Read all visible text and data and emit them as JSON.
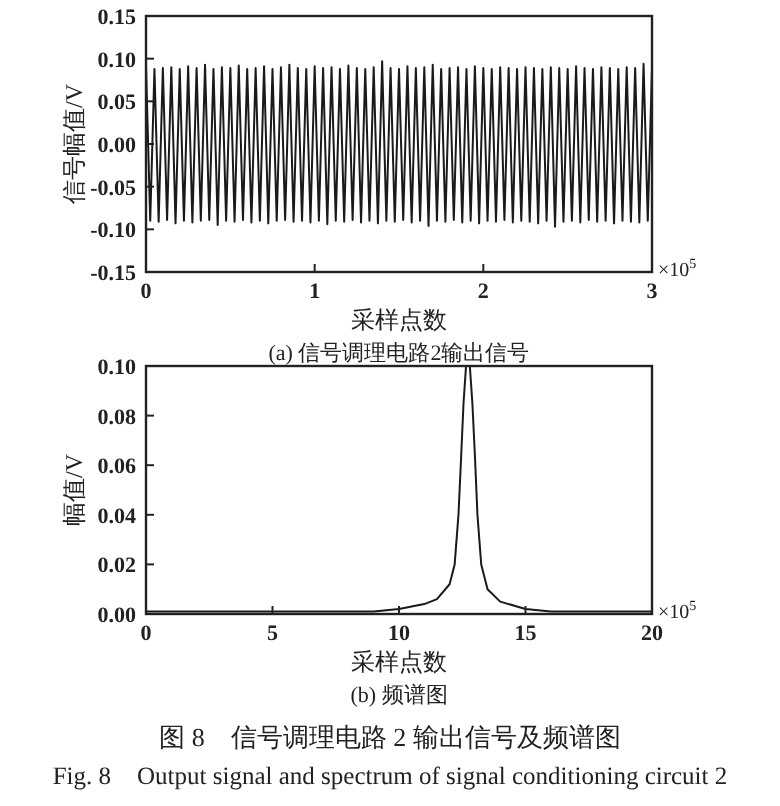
{
  "chart_data": [
    {
      "type": "line",
      "title": "(a) 信号调理电路2输出信号",
      "xlabel": "采样点数",
      "ylabel": "信号幅值/V",
      "annotations": [
        "×10$^{5}$"
      ],
      "xlim": [
        0,
        3
      ],
      "xticks": [
        0,
        1,
        2,
        3
      ],
      "ylim": [
        -0.15,
        0.15
      ],
      "yticks": [
        {
          "value": -0.15,
          "label": "-0.15"
        },
        {
          "value": -0.1,
          "label": "-0.10"
        },
        {
          "value": -0.05,
          "label": "-0.05"
        },
        {
          "value": 0,
          "label": "0.00"
        },
        {
          "value": 0.05,
          "label": "0.05"
        },
        {
          "value": 0.1,
          "label": "0.10"
        },
        {
          "value": 0.15,
          "label": "0.15"
        }
      ],
      "series": [
        {
          "color": "#1a1a1a",
          "x": [
            0,
            0.025,
            0.05,
            0.075,
            0.1,
            0.125,
            0.15,
            0.175,
            0.2,
            0.225,
            0.25,
            0.275,
            0.3,
            0.325,
            0.35,
            0.375,
            0.4,
            0.425,
            0.45,
            0.475,
            0.5,
            0.525,
            0.55,
            0.575,
            0.6,
            0.625,
            0.65,
            0.675,
            0.7,
            0.725,
            0.75,
            0.775,
            0.8,
            0.825,
            0.85,
            0.875,
            0.9,
            0.925,
            0.95,
            0.975,
            1,
            1.025,
            1.05,
            1.075,
            1.1,
            1.125,
            1.15,
            1.175,
            1.2,
            1.225,
            1.25,
            1.275,
            1.3,
            1.325,
            1.35,
            1.375,
            1.4,
            1.425,
            1.45,
            1.475,
            1.5,
            1.525,
            1.55,
            1.575,
            1.6,
            1.625,
            1.65,
            1.675,
            1.7,
            1.725,
            1.75,
            1.775,
            1.8,
            1.825,
            1.85,
            1.875,
            1.9,
            1.925,
            1.95,
            1.975,
            2,
            2.025,
            2.05,
            2.075,
            2.1,
            2.125,
            2.15,
            2.175,
            2.2,
            2.225,
            2.25,
            2.275,
            2.3,
            2.325,
            2.35,
            2.375,
            2.4,
            2.425,
            2.45,
            2.475,
            2.5,
            2.525,
            2.55,
            2.575,
            2.6,
            2.625,
            2.65,
            2.675,
            2.7,
            2.725,
            2.75,
            2.775,
            2.8,
            2.825,
            2.85,
            2.875,
            2.9,
            2.925,
            2.95,
            2.975,
            3
          ],
          "values": [
            0.092,
            -0.09,
            0.088,
            -0.091,
            0.089,
            -0.089,
            0.09,
            -0.093,
            0.088,
            -0.09,
            0.091,
            -0.092,
            0.089,
            -0.09,
            0.093,
            -0.089,
            0.088,
            -0.095,
            0.09,
            -0.09,
            0.089,
            -0.091,
            0.092,
            -0.089,
            0.088,
            -0.092,
            0.089,
            -0.09,
            0.091,
            -0.093,
            0.088,
            -0.09,
            0.09,
            -0.089,
            0.093,
            -0.091,
            0.089,
            -0.09,
            0.088,
            -0.092,
            0.091,
            -0.09,
            0.089,
            -0.094,
            0.09,
            -0.09,
            0.088,
            -0.091,
            0.092,
            -0.089,
            0.089,
            -0.092,
            0.088,
            -0.09,
            0.09,
            -0.093,
            0.097,
            -0.09,
            0.089,
            -0.091,
            0.088,
            -0.089,
            0.091,
            -0.092,
            0.089,
            -0.09,
            0.09,
            -0.096,
            0.093,
            -0.09,
            0.088,
            -0.091,
            0.089,
            -0.089,
            0.09,
            -0.092,
            0.088,
            -0.09,
            0.091,
            -0.093,
            0.089,
            -0.09,
            0.088,
            -0.091,
            0.09,
            -0.089,
            0.089,
            -0.092,
            0.088,
            -0.09,
            0.09,
            -0.091,
            0.089,
            -0.093,
            0.088,
            -0.09,
            0.09,
            -0.097,
            0.089,
            -0.091,
            0.088,
            -0.09,
            0.091,
            -0.092,
            0.089,
            -0.089,
            0.088,
            -0.091,
            0.09,
            -0.09,
            0.089,
            -0.093,
            0.088,
            -0.09,
            0.09,
            -0.091,
            0.089,
            -0.092,
            0.094,
            -0.09,
            0.089
          ]
        }
      ]
    },
    {
      "type": "line",
      "title": "(b) 频谱图",
      "xlabel": "采样点数",
      "ylabel": "幅值/V",
      "annotations": [
        "×10$^{5}$",
        "图 8　信号调理电路 2 输出信号及频谱图",
        "Fig. 8　Output signal and spectrum of signal conditioning circuit 2"
      ],
      "xlim": [
        0,
        20
      ],
      "xticks": [
        0,
        5,
        10,
        15,
        20
      ],
      "ylim": [
        0,
        0.1
      ],
      "yticks": [
        {
          "value": 0,
          "label": "0.00"
        },
        {
          "value": 0.02,
          "label": "0.02"
        },
        {
          "value": 0.04,
          "label": "0.04"
        },
        {
          "value": 0.06,
          "label": "0.06"
        },
        {
          "value": 0.08,
          "label": "0.08"
        },
        {
          "value": 0.1,
          "label": "0.10"
        }
      ],
      "series": [
        {
          "color": "#1a1a1a",
          "x": [
            0,
            5,
            9,
            10,
            11,
            11.5,
            12,
            12.2,
            12.35,
            12.45,
            12.55,
            12.65,
            12.8,
            12.9,
            13,
            13.1,
            13.25,
            13.5,
            14,
            15,
            16,
            20
          ],
          "values": [
            0.001,
            0.001,
            0.001,
            0.002,
            0.004,
            0.006,
            0.012,
            0.02,
            0.04,
            0.062,
            0.085,
            0.1,
            0.1,
            0.085,
            0.064,
            0.04,
            0.02,
            0.01,
            0.005,
            0.002,
            0.001,
            0.001
          ]
        }
      ]
    }
  ]
}
